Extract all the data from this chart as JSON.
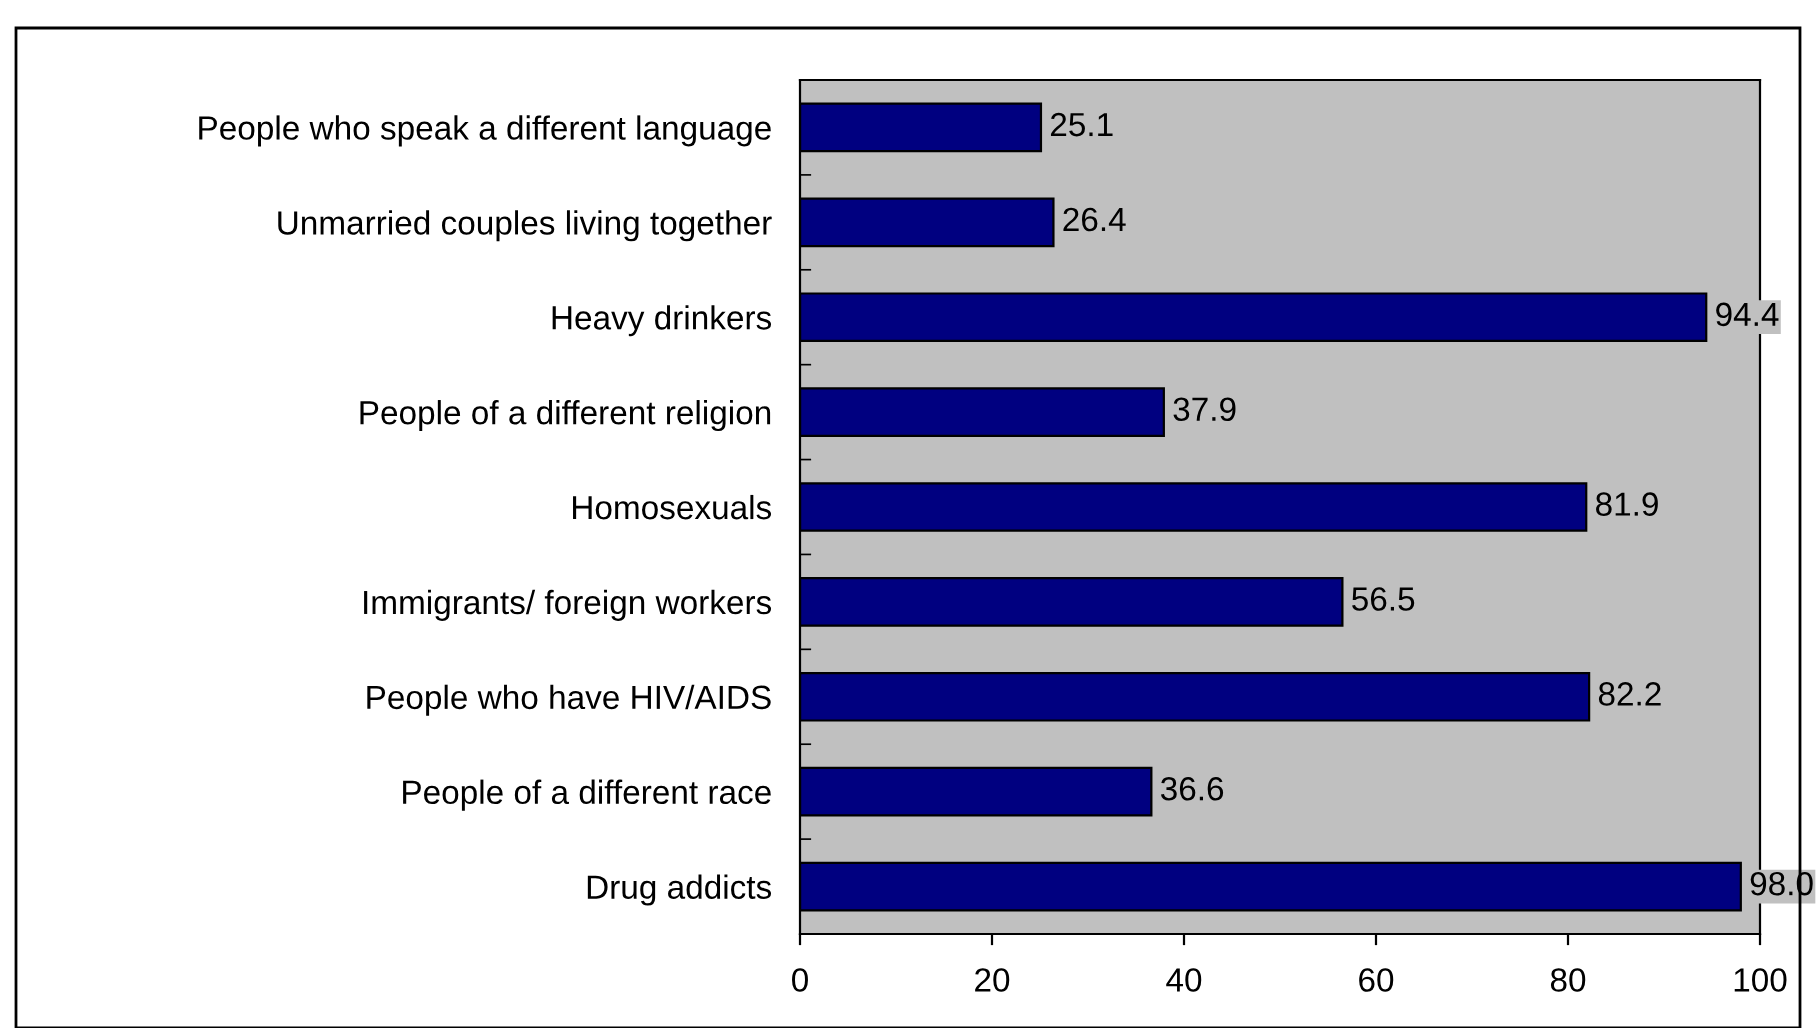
{
  "chart_data": {
    "type": "bar",
    "orientation": "horizontal",
    "categories": [
      "People who speak a different language",
      "Unmarried couples living together",
      "Heavy drinkers",
      "People of a different religion",
      "Homosexuals",
      "Immigrants/ foreign workers",
      "People who have HIV/AIDS",
      "People of a different race",
      "Drug addicts"
    ],
    "values": [
      25.1,
      26.4,
      94.4,
      37.9,
      81.9,
      56.5,
      82.2,
      36.6,
      98.0
    ],
    "value_labels": [
      "25.1",
      "26.4",
      "94.4",
      "37.9",
      "81.9",
      "56.5",
      "82.2",
      "36.6",
      "98.0"
    ],
    "color": "#000080",
    "xlim": [
      0,
      100
    ],
    "xticks": [
      0,
      20,
      40,
      60,
      80,
      100
    ],
    "grid": false
  }
}
